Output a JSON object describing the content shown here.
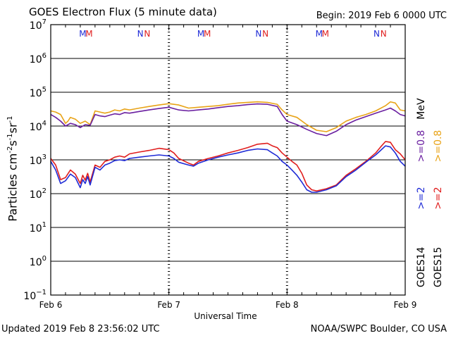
{
  "header": {
    "title": "GOES Electron Flux (5 minute data)",
    "begin": "Begin: 2019 Feb 6 0000 UTC"
  },
  "footer": {
    "updated": "Updated 2019 Feb  8 23:56:02 UTC",
    "credit": "NOAA/SWPC Boulder, CO USA"
  },
  "legend": {
    "goes14": "GOES14",
    "goes15": "GOES15",
    "ge2_a": ">=2",
    "ge2_b": ">=2",
    "ge08_a": ">=0.8",
    "ge08_b": ">=0.8",
    "unit": "MeV"
  },
  "colors": {
    "goes14_ge2": "#1f2bd6",
    "goes15_ge2": "#e01e1e",
    "goes14_ge08": "#6a1fa0",
    "goes15_ge08": "#e8a317"
  },
  "chart_data": {
    "type": "line",
    "title": "GOES Electron Flux (5 minute data)",
    "xlabel": "Universal Time",
    "ylabel": "Particles cm⁻²s⁻¹sr⁻¹",
    "y_scale": "log",
    "ylim": [
      0.1,
      10000000
    ],
    "xlim": [
      0,
      72
    ],
    "x_units": "hours since 2019 Feb 6 0000 UTC",
    "x_ticks": [
      {
        "x": 0,
        "label": "Feb 6"
      },
      {
        "x": 24,
        "label": "Feb 7"
      },
      {
        "x": 48,
        "label": "Feb 8"
      },
      {
        "x": 72,
        "label": "Feb 9"
      }
    ],
    "y_ticks": [
      {
        "exp": -1,
        "label": "10",
        "sup": "−1"
      },
      {
        "exp": 0,
        "label": "10",
        "sup": "0"
      },
      {
        "exp": 1,
        "label": "10",
        "sup": "1"
      },
      {
        "exp": 2,
        "label": "10",
        "sup": "2"
      },
      {
        "exp": 3,
        "label": "10",
        "sup": "3"
      },
      {
        "exp": 4,
        "label": "10",
        "sup": "4"
      },
      {
        "exp": 5,
        "label": "10",
        "sup": "5"
      },
      {
        "exp": 6,
        "label": "10",
        "sup": "6"
      },
      {
        "exp": 7,
        "label": "10",
        "sup": "7"
      }
    ],
    "threshold": 1000,
    "markers": [
      {
        "x": 6.5,
        "text": "M",
        "series": "GOES14"
      },
      {
        "x": 7.8,
        "text": "M",
        "series": "GOES15"
      },
      {
        "x": 18.2,
        "text": "N",
        "series": "GOES14"
      },
      {
        "x": 19.6,
        "text": "N",
        "series": "GOES15"
      },
      {
        "x": 30.5,
        "text": "M",
        "series": "GOES14"
      },
      {
        "x": 31.8,
        "text": "M",
        "series": "GOES15"
      },
      {
        "x": 42.2,
        "text": "N",
        "series": "GOES14"
      },
      {
        "x": 43.6,
        "text": "N",
        "series": "GOES15"
      },
      {
        "x": 54.5,
        "text": "M",
        "series": "GOES14"
      },
      {
        "x": 55.8,
        "text": "M",
        "series": "GOES15"
      },
      {
        "x": 66.2,
        "text": "N",
        "series": "GOES14"
      },
      {
        "x": 67.6,
        "text": "N",
        "series": "GOES15"
      }
    ],
    "series": [
      {
        "name": "GOES15 >=0.8 MeV",
        "color": "#e8a317",
        "points": [
          [
            0,
            28000
          ],
          [
            1,
            26000
          ],
          [
            2,
            22000
          ],
          [
            3,
            12000
          ],
          [
            3.5,
            14000
          ],
          [
            4,
            18000
          ],
          [
            5,
            16000
          ],
          [
            6,
            12000
          ],
          [
            7,
            14000
          ],
          [
            8,
            11000
          ],
          [
            9,
            28000
          ],
          [
            10,
            26000
          ],
          [
            11,
            24000
          ],
          [
            12,
            26000
          ],
          [
            13,
            30000
          ],
          [
            14,
            28000
          ],
          [
            15,
            32000
          ],
          [
            16,
            30000
          ],
          [
            18,
            34000
          ],
          [
            20,
            38000
          ],
          [
            22,
            42000
          ],
          [
            24,
            46000
          ],
          [
            26,
            42000
          ],
          [
            28,
            34000
          ],
          [
            30,
            36000
          ],
          [
            32,
            38000
          ],
          [
            34,
            40000
          ],
          [
            36,
            44000
          ],
          [
            38,
            48000
          ],
          [
            40,
            50000
          ],
          [
            42,
            52000
          ],
          [
            44,
            50000
          ],
          [
            46,
            44000
          ],
          [
            47,
            30000
          ],
          [
            48,
            22000
          ],
          [
            50,
            18000
          ],
          [
            52,
            11000
          ],
          [
            54,
            7500
          ],
          [
            56,
            6800
          ],
          [
            58,
            9000
          ],
          [
            60,
            14000
          ],
          [
            62,
            18000
          ],
          [
            64,
            22000
          ],
          [
            66,
            28000
          ],
          [
            68,
            40000
          ],
          [
            69,
            52000
          ],
          [
            70,
            48000
          ],
          [
            71,
            30000
          ],
          [
            72,
            28000
          ]
        ]
      },
      {
        "name": "GOES14 >=0.8 MeV",
        "color": "#6a1fa0",
        "points": [
          [
            0,
            22000
          ],
          [
            1,
            18000
          ],
          [
            2,
            14000
          ],
          [
            3,
            10000
          ],
          [
            4,
            12000
          ],
          [
            5,
            11000
          ],
          [
            6,
            9000
          ],
          [
            7,
            11000
          ],
          [
            8,
            10500
          ],
          [
            9,
            22000
          ],
          [
            10,
            20000
          ],
          [
            11,
            19000
          ],
          [
            12,
            21000
          ],
          [
            13,
            23000
          ],
          [
            14,
            22000
          ],
          [
            15,
            25000
          ],
          [
            16,
            24000
          ],
          [
            18,
            27000
          ],
          [
            20,
            30000
          ],
          [
            22,
            33000
          ],
          [
            24,
            36000
          ],
          [
            26,
            30000
          ],
          [
            28,
            28000
          ],
          [
            30,
            30000
          ],
          [
            32,
            32000
          ],
          [
            34,
            35000
          ],
          [
            36,
            38000
          ],
          [
            38,
            40000
          ],
          [
            40,
            43000
          ],
          [
            42,
            45000
          ],
          [
            44,
            44000
          ],
          [
            46,
            38000
          ],
          [
            47,
            22000
          ],
          [
            48,
            14000
          ],
          [
            50,
            11000
          ],
          [
            52,
            8000
          ],
          [
            54,
            6000
          ],
          [
            56,
            5200
          ],
          [
            58,
            7000
          ],
          [
            60,
            11000
          ],
          [
            62,
            15000
          ],
          [
            64,
            19000
          ],
          [
            66,
            24000
          ],
          [
            68,
            30000
          ],
          [
            69,
            34000
          ],
          [
            70,
            28000
          ],
          [
            71,
            22000
          ],
          [
            72,
            20000
          ]
        ]
      },
      {
        "name": "GOES15 >=2 MeV",
        "color": "#e01e1e",
        "points": [
          [
            0,
            1100
          ],
          [
            1,
            700
          ],
          [
            2,
            260
          ],
          [
            3,
            300
          ],
          [
            4,
            500
          ],
          [
            5,
            380
          ],
          [
            6,
            200
          ],
          [
            6.5,
            350
          ],
          [
            7,
            250
          ],
          [
            7.5,
            400
          ],
          [
            8,
            220
          ],
          [
            9,
            700
          ],
          [
            10,
            600
          ],
          [
            11,
            900
          ],
          [
            12,
            1000
          ],
          [
            13,
            1200
          ],
          [
            14,
            1300
          ],
          [
            15,
            1200
          ],
          [
            16,
            1500
          ],
          [
            18,
            1700
          ],
          [
            20,
            1900
          ],
          [
            22,
            2200
          ],
          [
            24,
            2000
          ],
          [
            25,
            1600
          ],
          [
            26,
            1100
          ],
          [
            28,
            800
          ],
          [
            29,
            700
          ],
          [
            30,
            900
          ],
          [
            32,
            1100
          ],
          [
            34,
            1300
          ],
          [
            36,
            1600
          ],
          [
            38,
            1900
          ],
          [
            40,
            2300
          ],
          [
            42,
            2900
          ],
          [
            44,
            3100
          ],
          [
            45,
            2600
          ],
          [
            46,
            2300
          ],
          [
            47,
            1600
          ],
          [
            48,
            1200
          ],
          [
            49,
            900
          ],
          [
            50,
            700
          ],
          [
            51,
            400
          ],
          [
            52,
            180
          ],
          [
            53,
            130
          ],
          [
            54,
            120
          ],
          [
            56,
            140
          ],
          [
            58,
            180
          ],
          [
            60,
            350
          ],
          [
            62,
            550
          ],
          [
            64,
            900
          ],
          [
            66,
            1600
          ],
          [
            67,
            2400
          ],
          [
            68,
            3500
          ],
          [
            69,
            3300
          ],
          [
            70,
            2000
          ],
          [
            71,
            1500
          ],
          [
            72,
            1000
          ]
        ]
      },
      {
        "name": "GOES14 >=2 MeV",
        "color": "#1f2bd6",
        "points": [
          [
            0,
            900
          ],
          [
            1,
            500
          ],
          [
            2,
            200
          ],
          [
            3,
            240
          ],
          [
            4,
            380
          ],
          [
            5,
            300
          ],
          [
            6,
            150
          ],
          [
            6.5,
            260
          ],
          [
            7,
            200
          ],
          [
            7.5,
            320
          ],
          [
            8,
            180
          ],
          [
            9,
            600
          ],
          [
            10,
            500
          ],
          [
            11,
            700
          ],
          [
            12,
            800
          ],
          [
            13,
            950
          ],
          [
            14,
            1000
          ],
          [
            15,
            950
          ],
          [
            16,
            1100
          ],
          [
            18,
            1200
          ],
          [
            20,
            1300
          ],
          [
            22,
            1400
          ],
          [
            24,
            1300
          ],
          [
            25,
            1100
          ],
          [
            26,
            850
          ],
          [
            28,
            700
          ],
          [
            29,
            650
          ],
          [
            30,
            800
          ],
          [
            32,
            1000
          ],
          [
            34,
            1200
          ],
          [
            36,
            1400
          ],
          [
            38,
            1600
          ],
          [
            40,
            1900
          ],
          [
            42,
            2100
          ],
          [
            44,
            2000
          ],
          [
            45,
            1600
          ],
          [
            46,
            1300
          ],
          [
            47,
            900
          ],
          [
            48,
            700
          ],
          [
            49,
            500
          ],
          [
            50,
            350
          ],
          [
            51,
            220
          ],
          [
            52,
            130
          ],
          [
            53,
            110
          ],
          [
            54,
            110
          ],
          [
            56,
            130
          ],
          [
            58,
            170
          ],
          [
            60,
            320
          ],
          [
            62,
            500
          ],
          [
            64,
            850
          ],
          [
            66,
            1400
          ],
          [
            67,
            1900
          ],
          [
            68,
            2600
          ],
          [
            69,
            2400
          ],
          [
            70,
            1600
          ],
          [
            71,
            900
          ],
          [
            72,
            650
          ]
        ]
      }
    ]
  }
}
